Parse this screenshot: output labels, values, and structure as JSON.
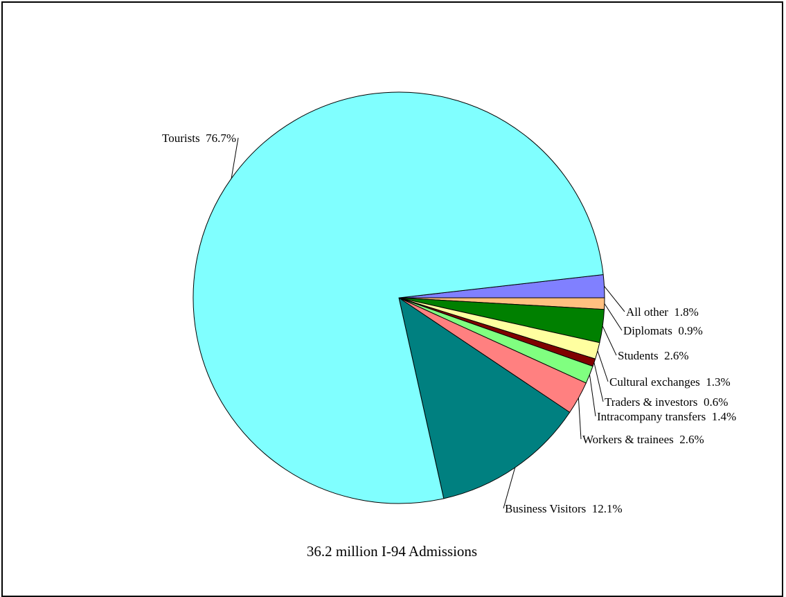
{
  "chart_data": {
    "type": "pie",
    "caption": "36.2 million I-94 Admissions",
    "legend": "none",
    "slices": [
      {
        "key": "all_other",
        "label": "All other",
        "value": 1.8,
        "value_text": "1.8%",
        "color": "#8080ff"
      },
      {
        "key": "diplomats",
        "label": "Diplomats",
        "value": 0.9,
        "value_text": "0.9%",
        "color": "#ffc080"
      },
      {
        "key": "students",
        "label": "Students",
        "value": 2.6,
        "value_text": "2.6%",
        "color": "#008000"
      },
      {
        "key": "cultural_exchanges",
        "label": "Cultural exchanges",
        "value": 1.3,
        "value_text": "1.3%",
        "color": "#ffffa0"
      },
      {
        "key": "traders_investors",
        "label": "Traders & investors",
        "value": 0.6,
        "value_text": "0.6%",
        "color": "#800000"
      },
      {
        "key": "intracompany_transfers",
        "label": "Intracompany transfers",
        "value": 1.4,
        "value_text": "1.4%",
        "color": "#80ff80"
      },
      {
        "key": "workers_trainees",
        "label": "Workers & trainees",
        "value": 2.6,
        "value_text": "2.6%",
        "color": "#ff8080"
      },
      {
        "key": "business_visitors",
        "label": "Business Visitors",
        "value": 12.1,
        "value_text": "12.1%",
        "color": "#008080"
      },
      {
        "key": "tourists",
        "label": "Tourists",
        "value": 76.7,
        "value_text": "76.7%",
        "color": "#80ffff"
      }
    ]
  }
}
